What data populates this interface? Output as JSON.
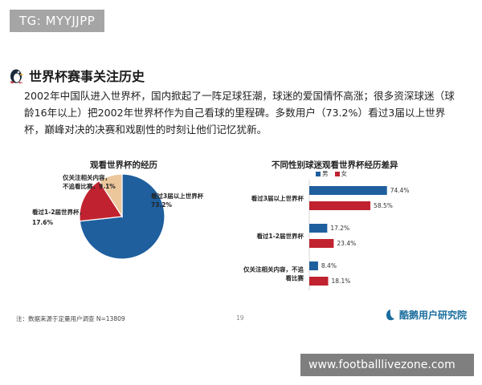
{
  "watermark_tag": "TG: MYYJJPP",
  "heading": "世界杯赛事关注历史",
  "paragraph": "2002年中国队进入世界杯，国内掀起了一阵足球狂潮，球迷的爱国情怀高涨；很多资深球迷（球龄16年以上）把2002年世界杯作为自己看球的里程碑。多数用户（73.2%）看过3届以上世界杯，巅峰对决的决赛和戏剧性的时刻让他们记忆犹新。",
  "footnote": "注：数据来源于定量用户调查 N=13809",
  "page_number": "19",
  "brand_name": "酷鹅用户研究院",
  "site_watermark": "www.footballlivezone.com",
  "colors": {
    "blue": "#1f5f9e",
    "red": "#c0232f",
    "tan": "#ecc79c"
  },
  "chart_data": [
    {
      "type": "pie",
      "title": "观看世界杯的经历",
      "slices": [
        {
          "label": "看过3届以上世界杯，73.2%",
          "value": 73.2,
          "color": "#1f5f9e"
        },
        {
          "label": "看过1-2届世界杯，17.6%",
          "value": 17.6,
          "color": "#c0232f"
        },
        {
          "label": "仅关注相关内容，不追看比赛，9.1%",
          "value": 9.1,
          "color": "#ecc79c"
        }
      ]
    },
    {
      "type": "bar",
      "orientation": "horizontal",
      "title": "不同性别球迷观看世界杯经历差异",
      "categories": [
        "看过3届以上世界杯",
        "看过1-2届世界杯",
        "仅关注相关内容，不追看比赛"
      ],
      "series": [
        {
          "name": "男",
          "values": [
            74.4,
            17.2,
            8.4
          ],
          "labels": [
            "74.4%",
            "17.2%",
            "8.4%"
          ],
          "color": "#1f5f9e"
        },
        {
          "name": "女",
          "values": [
            58.5,
            23.4,
            18.1
          ],
          "labels": [
            "58.5%",
            "23.4%",
            "18.1%"
          ],
          "color": "#c0232f"
        }
      ],
      "legend": "top-left"
    }
  ]
}
